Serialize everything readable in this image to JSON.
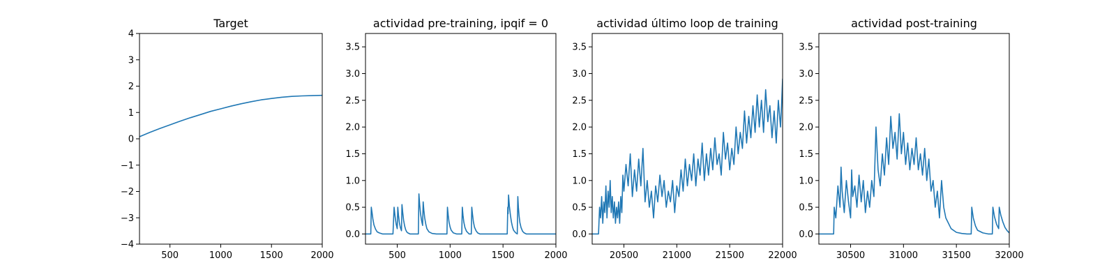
{
  "figure": {
    "colors": {
      "line": "#1f77b4",
      "axes": "#000000",
      "background": "#ffffff"
    }
  },
  "chart_data": [
    {
      "type": "line",
      "title": "Target",
      "xlabel": "",
      "ylabel": "",
      "xlim": [
        200,
        2000
      ],
      "ylim": [
        -4,
        4
      ],
      "xticks": [
        500,
        1000,
        1500,
        2000
      ],
      "yticks": [
        -4,
        -3,
        -2,
        -1,
        0,
        1,
        2,
        3,
        4
      ],
      "ytick_labels": [
        "−4",
        "−3",
        "−2",
        "−1",
        "0",
        "1",
        "2",
        "3",
        "4"
      ],
      "grid": false,
      "series": [
        {
          "x": [
            200,
            300,
            400,
            500,
            600,
            700,
            800,
            900,
            1000,
            1100,
            1200,
            1300,
            1400,
            1500,
            1600,
            1700,
            1800,
            1900,
            2000
          ],
          "y": [
            0.08,
            0.24,
            0.39,
            0.53,
            0.67,
            0.8,
            0.92,
            1.04,
            1.14,
            1.24,
            1.33,
            1.41,
            1.48,
            1.53,
            1.58,
            1.61,
            1.63,
            1.64,
            1.65
          ]
        }
      ]
    },
    {
      "type": "line",
      "title": "actividad pre-training, ipqif = 0",
      "xlabel": "",
      "ylabel": "",
      "xlim": [
        200,
        2000
      ],
      "ylim": [
        -0.19,
        3.75
      ],
      "xticks": [
        500,
        1000,
        1500,
        2000
      ],
      "yticks": [
        0.0,
        0.5,
        1.0,
        1.5,
        2.0,
        2.5,
        3.0,
        3.5
      ],
      "ytick_labels": [
        "0.0",
        "0.5",
        "1.0",
        "1.5",
        "2.0",
        "2.5",
        "3.0",
        "3.5"
      ],
      "grid": false,
      "series": [
        {
          "x": [
            200,
            250,
            255,
            262,
            270,
            280,
            295,
            310,
            330,
            360,
            400,
            450,
            460,
            470,
            480,
            490,
            500,
            505,
            512,
            520,
            530,
            540,
            545,
            552,
            560,
            570,
            580,
            590,
            600,
            620,
            640,
            660,
            680,
            700,
            705,
            712,
            720,
            730,
            740,
            745,
            752,
            760,
            770,
            780,
            800,
            830,
            870,
            900,
            940,
            970,
            975,
            982,
            990,
            1000,
            1010,
            1030,
            1060,
            1100,
            1110,
            1115,
            1122,
            1130,
            1140,
            1155,
            1170,
            1180,
            1190,
            1200,
            1205,
            1212,
            1220,
            1230,
            1245,
            1260,
            1280,
            1310,
            1350,
            1400,
            1450,
            1500,
            1540,
            1545,
            1548,
            1552,
            1560,
            1570,
            1580,
            1590,
            1600,
            1620,
            1635,
            1640,
            1645,
            1652,
            1660,
            1670,
            1685,
            1700,
            1720,
            1750,
            1800,
            1900,
            2000
          ],
          "y": [
            0.0,
            0.0,
            0.5,
            0.4,
            0.28,
            0.17,
            0.09,
            0.04,
            0.02,
            0.0,
            0.0,
            0.0,
            0.0,
            0.5,
            0.32,
            0.18,
            0.1,
            0.5,
            0.35,
            0.22,
            0.12,
            0.06,
            0.55,
            0.4,
            0.26,
            0.15,
            0.08,
            0.04,
            0.02,
            0.0,
            0.0,
            0.0,
            0.0,
            0.0,
            0.75,
            0.55,
            0.38,
            0.25,
            0.16,
            0.6,
            0.44,
            0.3,
            0.18,
            0.1,
            0.04,
            0.01,
            0.0,
            0.0,
            0.0,
            0.0,
            0.5,
            0.35,
            0.22,
            0.13,
            0.07,
            0.02,
            0.0,
            0.0,
            0.0,
            0.5,
            0.35,
            0.22,
            0.12,
            0.05,
            0.02,
            0.0,
            0.0,
            0.0,
            0.5,
            0.36,
            0.23,
            0.13,
            0.06,
            0.02,
            0.0,
            0.0,
            0.0,
            0.0,
            0.0,
            0.0,
            0.0,
            0.5,
            0.38,
            0.73,
            0.52,
            0.35,
            0.22,
            0.13,
            0.07,
            0.02,
            0.0,
            0.7,
            0.5,
            0.34,
            0.21,
            0.12,
            0.05,
            0.02,
            0.0,
            0.0,
            0.0,
            0.0,
            0.0
          ]
        }
      ]
    },
    {
      "type": "line",
      "title": "actividad último loop de training",
      "xlabel": "",
      "ylabel": "",
      "xlim": [
        20200,
        22000
      ],
      "ylim": [
        -0.19,
        3.75
      ],
      "xticks": [
        20500,
        21000,
        21500,
        22000
      ],
      "yticks": [
        0.0,
        0.5,
        1.0,
        1.5,
        2.0,
        2.5,
        3.0,
        3.5
      ],
      "ytick_labels": [
        "0.0",
        "0.5",
        "1.0",
        "1.5",
        "2.0",
        "2.5",
        "3.0",
        "3.5"
      ],
      "grid": false,
      "series": [
        {
          "x": [
            20200,
            20260,
            20270,
            20280,
            20290,
            20300,
            20310,
            20320,
            20330,
            20340,
            20350,
            20360,
            20370,
            20380,
            20390,
            20400,
            20410,
            20420,
            20430,
            20440,
            20450,
            20460,
            20470,
            20480,
            20490,
            20500,
            20520,
            20540,
            20560,
            20580,
            20600,
            20620,
            20640,
            20660,
            20680,
            20700,
            20720,
            20740,
            20760,
            20780,
            20800,
            20820,
            20840,
            20860,
            20880,
            20900,
            20920,
            20940,
            20960,
            20980,
            21000,
            21020,
            21040,
            21060,
            21080,
            21100,
            21120,
            21140,
            21160,
            21180,
            21200,
            21220,
            21240,
            21260,
            21280,
            21300,
            21320,
            21340,
            21360,
            21380,
            21400,
            21420,
            21440,
            21460,
            21480,
            21500,
            21520,
            21540,
            21560,
            21580,
            21600,
            21620,
            21640,
            21660,
            21680,
            21700,
            21720,
            21740,
            21760,
            21780,
            21800,
            21820,
            21840,
            21860,
            21880,
            21900,
            21920,
            21940,
            21960,
            21980,
            21990,
            22000
          ],
          "y": [
            0.0,
            0.0,
            0.5,
            0.3,
            0.7,
            0.2,
            0.6,
            0.4,
            0.9,
            0.3,
            0.8,
            0.5,
            1.0,
            0.4,
            0.7,
            0.3,
            0.6,
            0.2,
            0.5,
            0.3,
            0.6,
            0.2,
            0.7,
            0.4,
            1.1,
            0.8,
            1.3,
            0.9,
            1.5,
            0.7,
            1.2,
            0.8,
            1.4,
            0.9,
            1.6,
            0.6,
            1.0,
            0.5,
            0.8,
            0.3,
            0.9,
            0.6,
            1.1,
            0.7,
            1.0,
            0.5,
            0.8,
            0.6,
            1.0,
            0.4,
            0.9,
            0.7,
            1.2,
            0.8,
            1.4,
            0.9,
            1.3,
            1.0,
            1.5,
            0.9,
            1.4,
            1.1,
            1.7,
            1.0,
            1.5,
            1.1,
            1.6,
            1.2,
            1.8,
            1.3,
            1.5,
            1.1,
            1.9,
            1.4,
            1.7,
            1.2,
            1.6,
            1.3,
            2.0,
            1.5,
            1.9,
            1.6,
            2.3,
            1.7,
            2.2,
            1.8,
            2.4,
            1.9,
            2.6,
            2.0,
            2.5,
            1.9,
            2.7,
            2.1,
            2.4,
            1.8,
            2.3,
            1.7,
            2.5,
            2.0,
            2.4,
            2.9
          ]
        }
      ]
    },
    {
      "type": "line",
      "title": "actividad post-training",
      "xlabel": "",
      "ylabel": "",
      "xlim": [
        30200,
        32000
      ],
      "ylim": [
        -0.19,
        3.75
      ],
      "xticks": [
        30500,
        31000,
        31500,
        32000
      ],
      "yticks": [
        0.0,
        0.5,
        1.0,
        1.5,
        2.0,
        2.5,
        3.0,
        3.5
      ],
      "ytick_labels": [
        "0.0",
        "0.5",
        "1.0",
        "1.5",
        "2.0",
        "2.5",
        "3.0",
        "3.5"
      ],
      "grid": false,
      "series": [
        {
          "x": [
            30200,
            30340,
            30345,
            30360,
            30380,
            30400,
            30410,
            30420,
            30440,
            30460,
            30480,
            30500,
            30510,
            30520,
            30540,
            30560,
            30580,
            30600,
            30620,
            30640,
            30660,
            30680,
            30700,
            30720,
            30740,
            30760,
            30780,
            30800,
            30820,
            30840,
            30860,
            30880,
            30900,
            30920,
            30940,
            30960,
            30980,
            31000,
            31020,
            31040,
            31060,
            31080,
            31100,
            31120,
            31140,
            31160,
            31180,
            31200,
            31220,
            31240,
            31260,
            31280,
            31300,
            31320,
            31340,
            31360,
            31380,
            31400,
            31450,
            31500,
            31550,
            31600,
            31640,
            31645,
            31660,
            31680,
            31700,
            31750,
            31800,
            31840,
            31845,
            31860,
            31880,
            31900,
            31905,
            31920,
            31940,
            31960,
            31980,
            32000
          ],
          "y": [
            0.0,
            0.0,
            0.5,
            0.3,
            0.9,
            0.5,
            1.25,
            0.8,
            0.4,
            1.0,
            0.6,
            0.3,
            1.2,
            0.7,
            0.9,
            0.5,
            1.1,
            0.6,
            1.0,
            0.4,
            0.8,
            0.5,
            1.0,
            0.7,
            2.0,
            1.2,
            0.9,
            1.5,
            1.1,
            1.8,
            1.3,
            2.2,
            1.6,
            1.9,
            1.4,
            2.25,
            1.5,
            1.9,
            1.3,
            1.7,
            1.2,
            1.6,
            1.3,
            1.8,
            1.2,
            1.5,
            1.1,
            1.6,
            1.0,
            1.4,
            0.8,
            1.0,
            0.5,
            0.8,
            0.3,
            1.0,
            0.5,
            0.3,
            0.1,
            0.03,
            0.01,
            0.0,
            0.0,
            0.5,
            0.3,
            0.15,
            0.07,
            0.02,
            0.0,
            0.0,
            0.5,
            0.32,
            0.18,
            0.1,
            0.5,
            0.35,
            0.22,
            0.12,
            0.06,
            0.02
          ]
        }
      ]
    }
  ]
}
